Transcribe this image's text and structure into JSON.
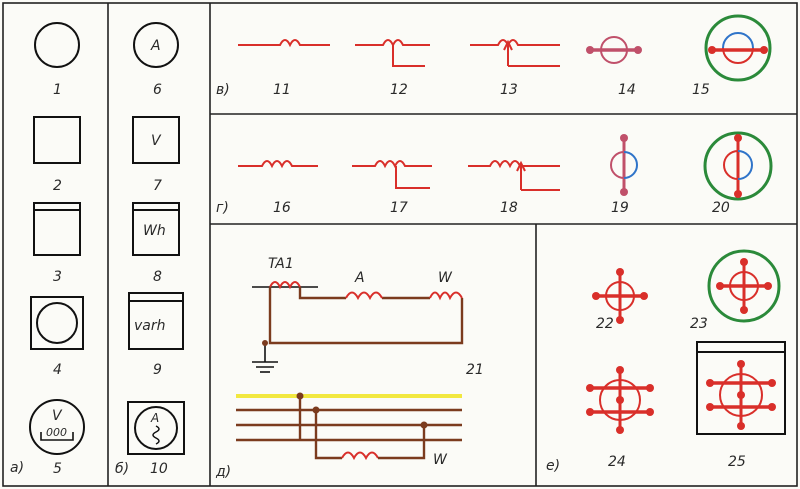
{
  "sections": {
    "a": "а)",
    "b": "б)",
    "v": "в)",
    "g": "г)",
    "d": "д)",
    "e": "е)"
  },
  "numbers": {
    "n1": "1",
    "n2": "2",
    "n3": "3",
    "n4": "4",
    "n5": "5",
    "n6": "6",
    "n7": "7",
    "n8": "8",
    "n9": "9",
    "n10": "10",
    "n11": "11",
    "n12": "12",
    "n13": "13",
    "n14": "14",
    "n15": "15",
    "n16": "16",
    "n17": "17",
    "n18": "18",
    "n19": "19",
    "n20": "20",
    "n21": "21",
    "n22": "22",
    "n23": "23",
    "n24": "24",
    "n25": "25"
  },
  "symbol_letters": {
    "ammeter": "A",
    "voltmeter": "V",
    "watthour": "Wh",
    "varhour": "varh",
    "meter5": "V",
    "meter5_scale": "000",
    "meter10": "A"
  },
  "circuit": {
    "ta1": "TA1",
    "ammeter": "A",
    "wattmeter": "W",
    "wattmeter_bottom": "W"
  },
  "colors": {
    "red": "#d92f2a",
    "blue": "#2f74c9",
    "green": "#2b8a3a",
    "brown": "#7b3b1e",
    "yellow": "#f2e840"
  }
}
